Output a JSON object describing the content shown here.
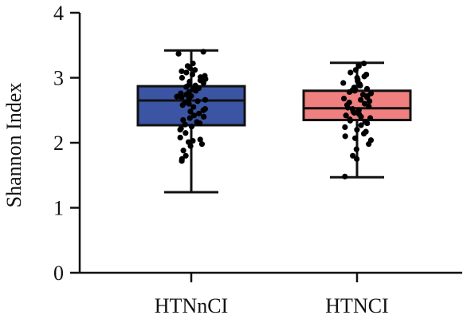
{
  "chart_data": {
    "type": "box",
    "title": "",
    "xlabel": "",
    "ylabel": "Shannon Index",
    "ylim": [
      0,
      4
    ],
    "yticks": [
      "0",
      "1",
      "2",
      "3",
      "4"
    ],
    "grid": false,
    "legend": "none",
    "categories": [
      "HTNnCI",
      "HTNCI"
    ],
    "series": [
      {
        "category": "HTNnCI",
        "color": "#3b54a3",
        "whisker_low": 1.24,
        "q1": 2.27,
        "median": 2.65,
        "q3": 2.87,
        "whisker_high": 3.42,
        "points": [
          3.4,
          3.37,
          3.22,
          3.18,
          3.15,
          3.12,
          3.1,
          3.08,
          3.05,
          3.03,
          3.01,
          3.0,
          2.98,
          2.96,
          2.94,
          2.92,
          2.9,
          2.88,
          2.86,
          2.84,
          2.82,
          2.8,
          2.78,
          2.76,
          2.74,
          2.72,
          2.71,
          2.7,
          2.68,
          2.66,
          2.64,
          2.62,
          2.6,
          2.58,
          2.55,
          2.52,
          2.5,
          2.48,
          2.45,
          2.42,
          2.4,
          2.38,
          2.35,
          2.32,
          2.3,
          2.28,
          2.25,
          2.22,
          2.2,
          2.15,
          2.08,
          2.05,
          2.03,
          2.01,
          1.98,
          1.95,
          1.88,
          1.8,
          1.75,
          1.72
        ]
      },
      {
        "category": "HTNCI",
        "color": "#f07f7f",
        "whisker_low": 1.47,
        "q1": 2.35,
        "median": 2.53,
        "q3": 2.8,
        "whisker_high": 3.23,
        "points": [
          3.22,
          3.18,
          3.12,
          3.08,
          3.05,
          3.02,
          3.0,
          2.97,
          2.95,
          2.92,
          2.9,
          2.88,
          2.85,
          2.83,
          2.81,
          2.8,
          2.78,
          2.76,
          2.74,
          2.72,
          2.7,
          2.68,
          2.66,
          2.64,
          2.62,
          2.6,
          2.58,
          2.56,
          2.54,
          2.52,
          2.5,
          2.48,
          2.46,
          2.44,
          2.42,
          2.4,
          2.38,
          2.36,
          2.34,
          2.32,
          2.3,
          2.27,
          2.24,
          2.2,
          2.17,
          2.14,
          2.1,
          2.07,
          2.04,
          1.98,
          1.9,
          1.8,
          1.75,
          1.48
        ]
      }
    ]
  }
}
